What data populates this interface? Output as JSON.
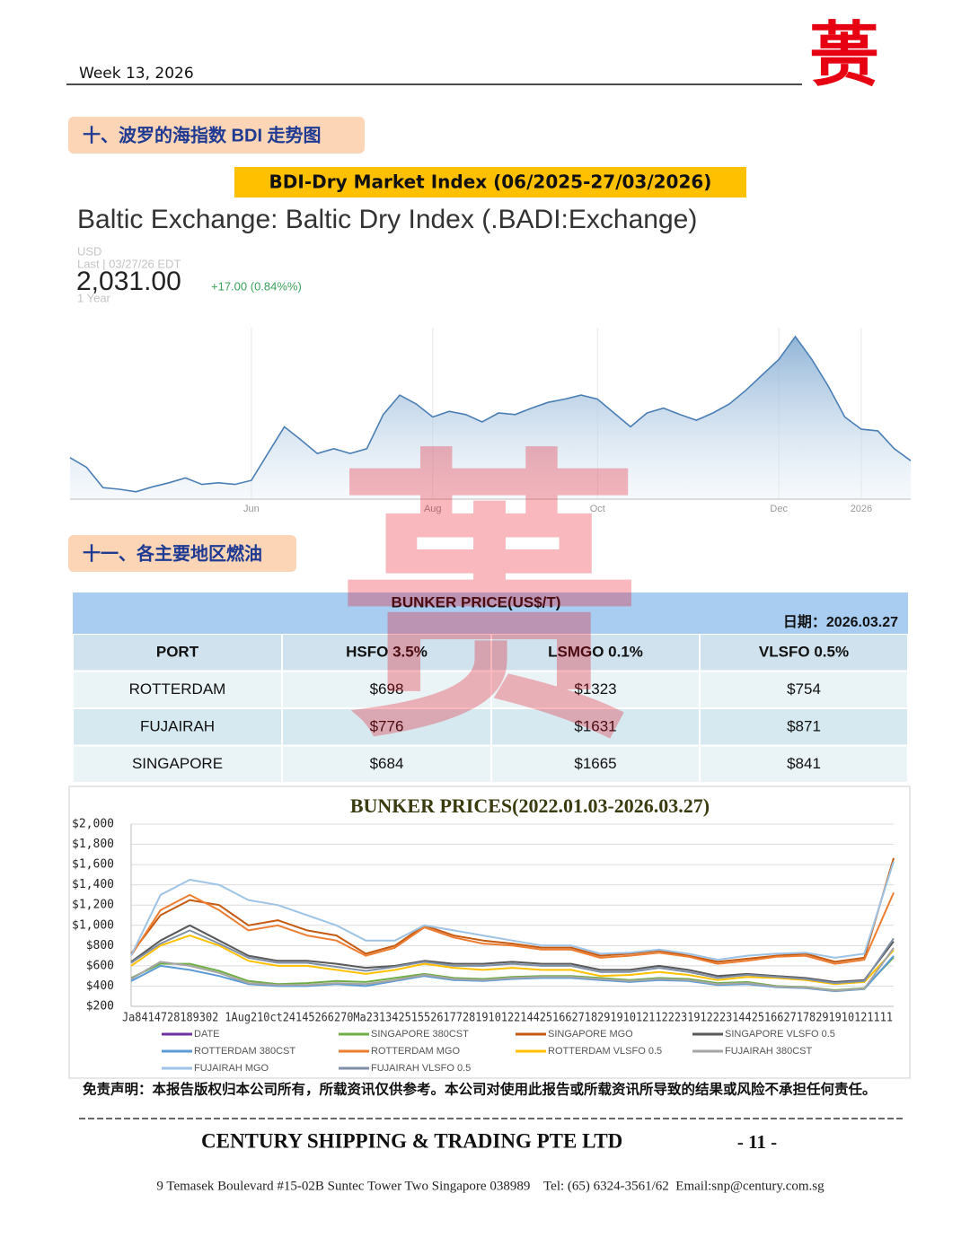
{
  "header": {
    "week": "Week 13, 2026",
    "logo": "蒉"
  },
  "sections": [
    "十、波罗的海指数 BDI 走势图",
    "十一、各主要地区燃油"
  ],
  "banner": "BDI-Dry Market Index (06/2025-27/03/2026)",
  "chart_data": [
    {
      "type": "area",
      "title": "Baltic Exchange: Baltic Dry Index (.BADI:Exchange)",
      "currency": "USD",
      "last_label": "Last | 03/27/26 EDT",
      "last_price": "2,031.00",
      "change": "+17.00 (0.84%%)",
      "period": "1 Year",
      "color": "#4a7fb5",
      "ylim": [
        1800,
        2850
      ],
      "grid": true,
      "xticks": [
        {
          "value": 11,
          "label": "Jun"
        },
        {
          "value": 22,
          "label": "Aug"
        },
        {
          "value": 32,
          "label": "Oct"
        },
        {
          "value": 43,
          "label": "Dec"
        },
        {
          "value": 48,
          "label": "2026"
        }
      ],
      "values": [
        2050,
        1990,
        1865,
        1855,
        1840,
        1870,
        1895,
        1925,
        1885,
        1895,
        1885,
        1910,
        2075,
        2240,
        2160,
        2075,
        2105,
        2075,
        2105,
        2315,
        2435,
        2380,
        2300,
        2335,
        2315,
        2270,
        2325,
        2315,
        2355,
        2390,
        2410,
        2435,
        2410,
        2325,
        2240,
        2325,
        2355,
        2315,
        2280,
        2325,
        2380,
        2465,
        2560,
        2655,
        2795,
        2655,
        2490,
        2300,
        2225,
        2215,
        2105,
        2031
      ]
    },
    {
      "type": "line",
      "title": "BUNKER PRICES(2022.01.03-2026.03.27)",
      "x_axis_text": "Ja8414728189302 1Aug210ct24145266270Ma2313425155261772819101221442516627182919101211222319122231442516627178291910121111",
      "ylim": [
        200,
        2000
      ],
      "yticks": [
        {
          "value": 2000,
          "label": "$2,000"
        },
        {
          "value": 1800,
          "label": "$1,800"
        },
        {
          "value": 1600,
          "label": "$1,600"
        },
        {
          "value": 1400,
          "label": "$1,400"
        },
        {
          "value": 1200,
          "label": "$1,200"
        },
        {
          "value": 1000,
          "label": "$1,000"
        },
        {
          "value": 800,
          "label": "$800"
        },
        {
          "value": 600,
          "label": "$600"
        },
        {
          "value": 400,
          "label": "$400"
        },
        {
          "value": 200,
          "label": "$200"
        }
      ],
      "grid": true,
      "series": [
        {
          "name": "DATE",
          "color": "#7030a0"
        },
        {
          "name": "SINGAPORE 380CST",
          "color": "#70ad47",
          "values": [
            480,
            620,
            620,
            550,
            450,
            420,
            430,
            450,
            440,
            480,
            520,
            480,
            470,
            490,
            500,
            500,
            480,
            460,
            480,
            470,
            430,
            440,
            400,
            390,
            360,
            380,
            684
          ]
        },
        {
          "name": "SINGAPORE MGO",
          "color": "#c55a11",
          "values": [
            720,
            1100,
            1250,
            1200,
            1000,
            1050,
            950,
            900,
            720,
            800,
            1000,
            900,
            850,
            820,
            780,
            780,
            700,
            720,
            750,
            700,
            640,
            670,
            700,
            720,
            640,
            680,
            1665
          ]
        },
        {
          "name": "SINGAPORE VLSFO 0.5",
          "color": "#595959",
          "values": [
            640,
            850,
            1000,
            850,
            700,
            650,
            650,
            620,
            580,
            600,
            650,
            620,
            620,
            640,
            620,
            620,
            560,
            560,
            600,
            560,
            500,
            520,
            500,
            480,
            440,
            460,
            841
          ]
        },
        {
          "name": "ROTTERDAM 380CST",
          "color": "#5b9bd5",
          "values": [
            450,
            600,
            560,
            500,
            420,
            400,
            400,
            420,
            400,
            450,
            500,
            460,
            450,
            470,
            480,
            480,
            460,
            440,
            460,
            450,
            410,
            420,
            390,
            380,
            350,
            370,
            698
          ]
        },
        {
          "name": "ROTTERDAM MGO",
          "color": "#ed7d31",
          "values": [
            700,
            1150,
            1300,
            1150,
            950,
            1000,
            900,
            850,
            700,
            780,
            980,
            880,
            820,
            800,
            760,
            760,
            680,
            700,
            730,
            690,
            620,
            650,
            690,
            700,
            620,
            660,
            1323
          ]
        },
        {
          "name": "ROTTERDAM VLSFO 0.5",
          "color": "#ffc000",
          "values": [
            600,
            800,
            900,
            800,
            650,
            600,
            600,
            560,
            520,
            560,
            620,
            580,
            560,
            580,
            560,
            560,
            500,
            510,
            540,
            510,
            460,
            490,
            480,
            460,
            420,
            440,
            754
          ]
        },
        {
          "name": "FUJAIRAH  380CST",
          "color": "#a5a5a5",
          "values": [
            470,
            640,
            600,
            530,
            430,
            410,
            410,
            430,
            420,
            460,
            510,
            470,
            460,
            480,
            490,
            490,
            470,
            450,
            470,
            460,
            420,
            430,
            395,
            385,
            355,
            375,
            776
          ]
        },
        {
          "name": "FUJAIRAH MGO",
          "color": "#9dc3e6",
          "values": [
            700,
            1300,
            1450,
            1400,
            1250,
            1200,
            1100,
            1000,
            850,
            850,
            1000,
            950,
            900,
            850,
            800,
            800,
            720,
            730,
            760,
            720,
            660,
            700,
            720,
            730,
            680,
            720,
            1631
          ]
        },
        {
          "name": "FUJAIRAH VLSFO 0.5",
          "color": "#7f8fa6",
          "values": [
            630,
            820,
            950,
            820,
            680,
            630,
            630,
            590,
            550,
            590,
            640,
            600,
            600,
            620,
            600,
            600,
            540,
            540,
            580,
            540,
            480,
            510,
            490,
            470,
            430,
            450,
            871
          ]
        }
      ]
    }
  ],
  "table": {
    "title": "BUNKER PRICE(US$/T)",
    "date": "日期：2026.03.27",
    "header": [
      "PORT",
      "HSFO 3.5%",
      "LSMGO 0.1%",
      "VLSFO 0.5%"
    ],
    "rows": [
      [
        "ROTTERDAM",
        "$698",
        "$1323",
        "$754"
      ],
      [
        "FUJAIRAH",
        "$776",
        "$1631",
        "$871"
      ],
      [
        "SINGAPORE",
        "$684",
        "$1665",
        "$841"
      ]
    ]
  },
  "footer": {
    "disclaimer": "免责声明：本报告版权归本公司所有，所载资讯仅供参考。本公司对使用此报告或所载资讯所导致的结果或风险不承担任何责任。",
    "company": "CENTURY SHIPPING & TRADING PTE LTD",
    "page": "- 11 -",
    "address": "9 Temasek Boulevard #15-02B Suntec Tower Two Singapore 038989    Tel: (65) 6324-3561/62  Email:snp@century.com.sg"
  }
}
